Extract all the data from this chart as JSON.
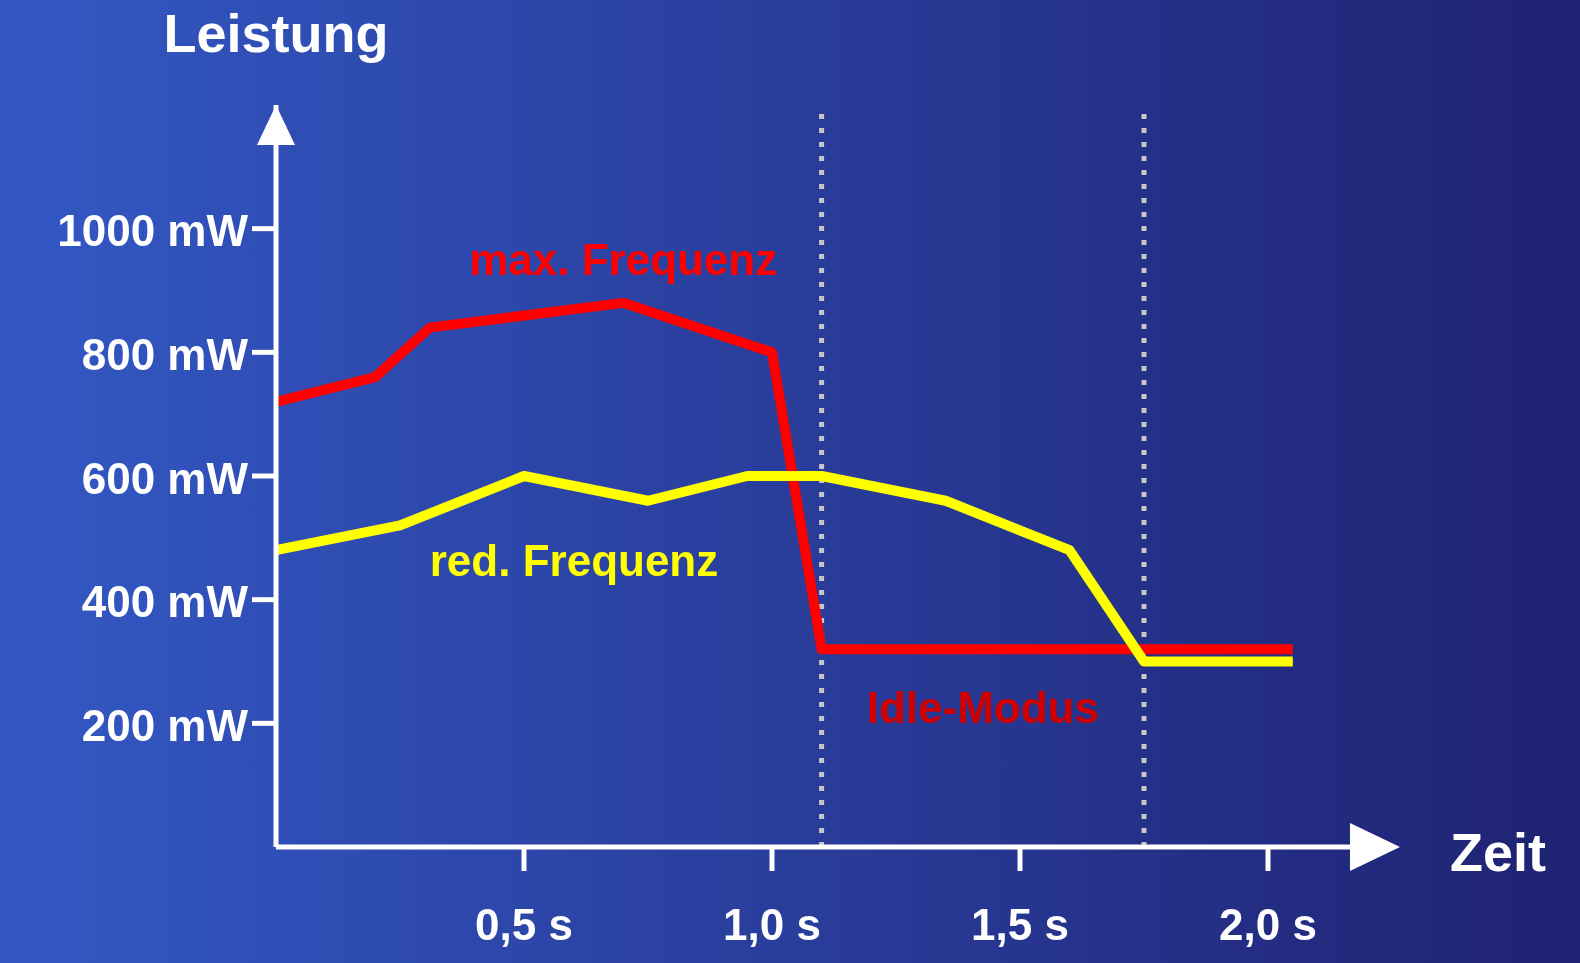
{
  "chart_data": {
    "type": "line",
    "xlabel": "Zeit",
    "ylabel": "Leistung",
    "xlim": [
      0,
      2.25
    ],
    "ylim": [
      0,
      1200
    ],
    "xticks": [
      {
        "value": 0.5,
        "label": "0,5 s"
      },
      {
        "value": 1,
        "label": "1,0 s"
      },
      {
        "value": 1.5,
        "label": "1,5 s"
      },
      {
        "value": 2,
        "label": "2,0 s"
      }
    ],
    "yticks": [
      {
        "value": 200,
        "label": "200 mW"
      },
      {
        "value": 400,
        "label": "400 mW"
      },
      {
        "value": 600,
        "label": "600 mW"
      },
      {
        "value": 800,
        "label": "800 mW"
      },
      {
        "value": 1000,
        "label": "1000 mW"
      }
    ],
    "series": [
      {
        "name": "max. Frequenz",
        "color": "#ff0000",
        "x": [
          0,
          0.2,
          0.31,
          0.7,
          1.0,
          1.1,
          2.05
        ],
        "values": [
          720,
          760,
          840,
          880,
          800,
          320,
          320
        ]
      },
      {
        "name": "red. Frequenz",
        "color": "#ffff00",
        "x": [
          0,
          0.25,
          0.5,
          0.75,
          0.95,
          1.1,
          1.35,
          1.6,
          1.75,
          2.05
        ],
        "values": [
          480,
          520,
          600,
          560,
          600,
          600,
          560,
          480,
          300,
          300
        ]
      }
    ],
    "ref_lines": [
      {
        "axis": "x",
        "value": 1.1,
        "label": null,
        "color": "#c8c8c8",
        "line_style": "dotted"
      },
      {
        "axis": "x",
        "value": 1.75,
        "label": null,
        "color": "#c8c8c8",
        "line_style": "dotted"
      }
    ],
    "annotations": [
      "Idle-Modus"
    ],
    "grid": false,
    "legend": false,
    "marker": "none",
    "line_style": "solid"
  }
}
